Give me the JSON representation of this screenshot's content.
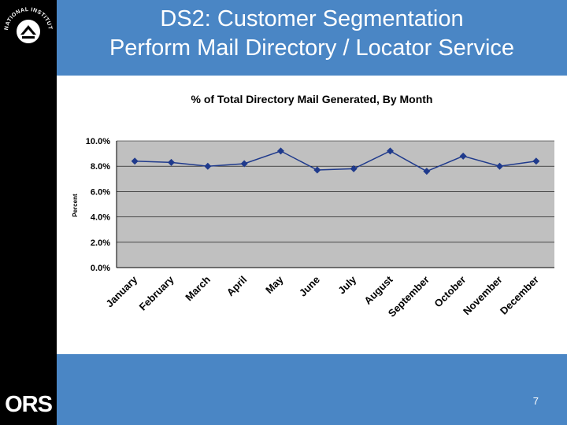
{
  "slide": {
    "title_line1": "DS2: Customer Segmentation",
    "title_line2": "Perform Mail Directory /  Locator Service",
    "page_number": "7",
    "logo_text": "ORS",
    "seal_text": "NATIONAL INSTITUTES OF HEALTH"
  },
  "colors": {
    "header": "#4a86c5",
    "sidebar": "#000000",
    "plot_bg": "#c0c0c0",
    "series": "#1f3a8c"
  },
  "chart_data": {
    "type": "line",
    "title": "% of Total Directory Mail Generated, By Month",
    "ylabel": "Percent",
    "xlabel": "",
    "categories": [
      "January",
      "February",
      "March",
      "April",
      "May",
      "June",
      "July",
      "August",
      "September",
      "October",
      "November",
      "December"
    ],
    "series": [
      {
        "name": "% of Total Directory Mail",
        "values": [
          8.4,
          8.3,
          8.0,
          8.2,
          9.2,
          7.7,
          7.8,
          9.2,
          7.6,
          8.8,
          8.0,
          8.4
        ]
      }
    ],
    "ylim": [
      0,
      10
    ],
    "yticks": [
      "0.0%",
      "2.0%",
      "4.0%",
      "6.0%",
      "8.0%",
      "10.0%"
    ],
    "grid": true
  }
}
